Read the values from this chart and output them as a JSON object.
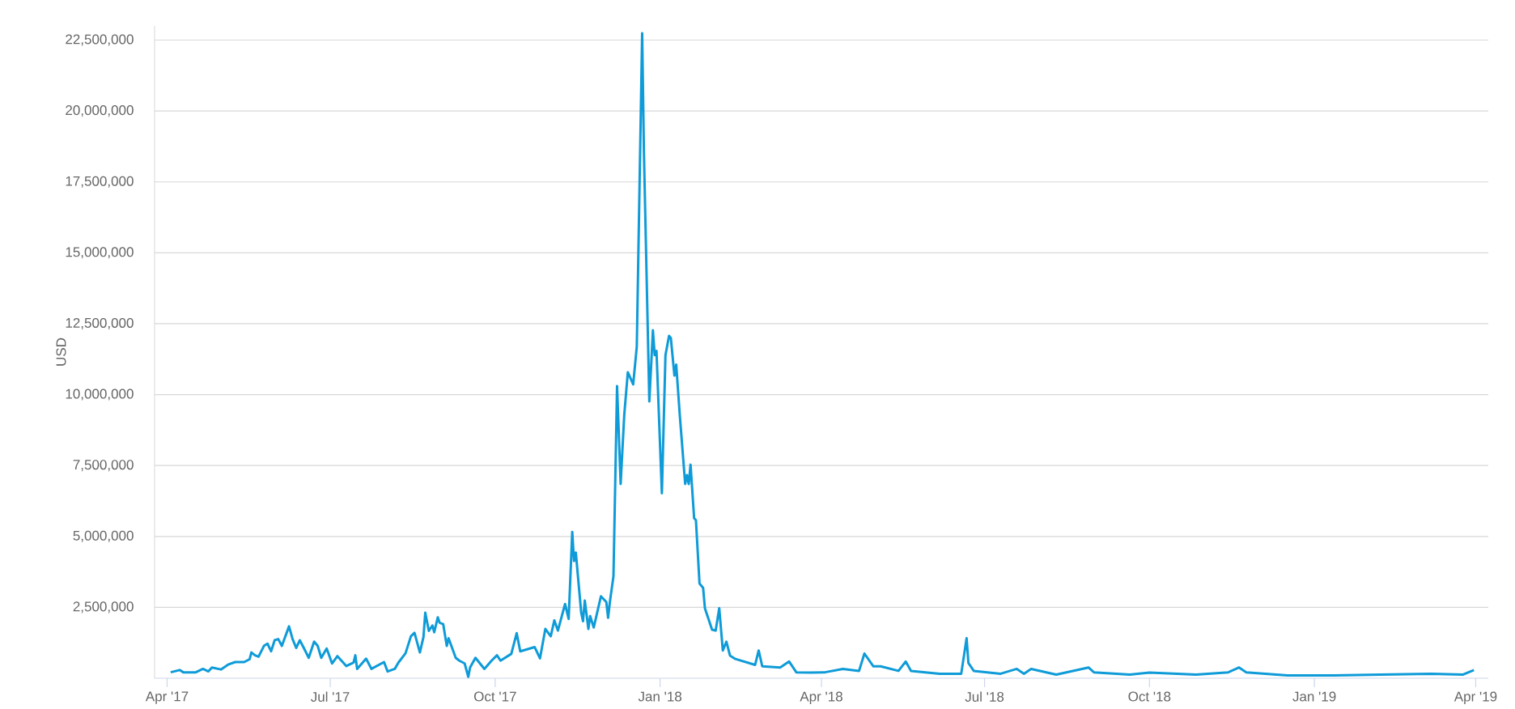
{
  "chart_data": {
    "type": "line",
    "ylabel": "USD",
    "color": "#0e9bd8",
    "grid": "y",
    "xlim": [
      "2017-03-25",
      "2019-04-08"
    ],
    "xticks": [
      {
        "value": "2017-04-01",
        "label": "Apr '17"
      },
      {
        "value": "2017-07-01",
        "label": "Jul '17"
      },
      {
        "value": "2017-10-01",
        "label": "Oct '17"
      },
      {
        "value": "2018-01-01",
        "label": "Jan '18"
      },
      {
        "value": "2018-04-01",
        "label": "Apr '18"
      },
      {
        "value": "2018-07-01",
        "label": "Jul '18"
      },
      {
        "value": "2018-10-01",
        "label": "Oct '18"
      },
      {
        "value": "2019-01-01",
        "label": "Jan '19"
      },
      {
        "value": "2019-04-01",
        "label": "Apr '19"
      }
    ],
    "ylim": [
      0,
      23000000
    ],
    "yticks": [
      {
        "value": 2500000,
        "label": "2,500,000"
      },
      {
        "value": 5000000,
        "label": "5,000,000"
      },
      {
        "value": 7500000,
        "label": "7,500,000"
      },
      {
        "value": 10000000,
        "label": "10,000,000"
      },
      {
        "value": 12500000,
        "label": "12,500,000"
      },
      {
        "value": 15000000,
        "label": "15,000,000"
      },
      {
        "value": 17500000,
        "label": "17,500,000"
      },
      {
        "value": 20000000,
        "label": "20,000,000"
      },
      {
        "value": 22500000,
        "label": "22,500,000"
      }
    ],
    "x": [
      "2017-04-03",
      "2017-04-08",
      "2017-04-10",
      "2017-04-17",
      "2017-04-21",
      "2017-04-24",
      "2017-04-26",
      "2017-05-01",
      "2017-05-05",
      "2017-05-09",
      "2017-05-14",
      "2017-05-17",
      "2017-05-18",
      "2017-05-20",
      "2017-05-22",
      "2017-05-25",
      "2017-05-27",
      "2017-05-29",
      "2017-05-31",
      "2017-06-02",
      "2017-06-04",
      "2017-06-08",
      "2017-06-10",
      "2017-06-12",
      "2017-06-14",
      "2017-06-16",
      "2017-06-19",
      "2017-06-22",
      "2017-06-24",
      "2017-06-26",
      "2017-06-29",
      "2017-06-30",
      "2017-07-02",
      "2017-07-05",
      "2017-07-10",
      "2017-07-14",
      "2017-07-15",
      "2017-07-16",
      "2017-07-21",
      "2017-07-24",
      "2017-07-31",
      "2017-08-02",
      "2017-08-06",
      "2017-08-08",
      "2017-08-12",
      "2017-08-15",
      "2017-08-17",
      "2017-08-20",
      "2017-08-22",
      "2017-08-23",
      "2017-08-25",
      "2017-08-27",
      "2017-08-28",
      "2017-08-30",
      "2017-08-31",
      "2017-09-02",
      "2017-09-04",
      "2017-09-05",
      "2017-09-09",
      "2017-09-11",
      "2017-09-14",
      "2017-09-16",
      "2017-09-17",
      "2017-09-20",
      "2017-09-25",
      "2017-09-29",
      "2017-10-02",
      "2017-10-04",
      "2017-10-10",
      "2017-10-13",
      "2017-10-15",
      "2017-10-23",
      "2017-10-26",
      "2017-10-29",
      "2017-11-01",
      "2017-11-03",
      "2017-11-05",
      "2017-11-09",
      "2017-11-11",
      "2017-11-13",
      "2017-11-14",
      "2017-11-15",
      "2017-11-18",
      "2017-11-19",
      "2017-11-20",
      "2017-11-22",
      "2017-11-23",
      "2017-11-25",
      "2017-11-29",
      "2017-12-02",
      "2017-12-03",
      "2017-12-04",
      "2017-12-06",
      "2017-12-08",
      "2017-12-10",
      "2017-12-12",
      "2017-12-14",
      "2017-12-17",
      "2017-12-19",
      "2017-12-22",
      "2017-12-23",
      "2017-12-26",
      "2017-12-28",
      "2017-12-29",
      "2017-12-30",
      "2018-01-02",
      "2018-01-04",
      "2018-01-06",
      "2018-01-07",
      "2018-01-09",
      "2018-01-10",
      "2018-01-12",
      "2018-01-15",
      "2018-01-16",
      "2018-01-17",
      "2018-01-18",
      "2018-01-20",
      "2018-01-21",
      "2018-01-23",
      "2018-01-25",
      "2018-01-26",
      "2018-01-30",
      "2018-02-01",
      "2018-02-03",
      "2018-02-05",
      "2018-02-07",
      "2018-02-09",
      "2018-02-12",
      "2018-02-23",
      "2018-02-25",
      "2018-02-27",
      "2018-03-09",
      "2018-03-14",
      "2018-03-18",
      "2018-03-26",
      "2018-04-03",
      "2018-04-13",
      "2018-04-22",
      "2018-04-25",
      "2018-04-30",
      "2018-05-04",
      "2018-05-14",
      "2018-05-18",
      "2018-05-21",
      "2018-06-06",
      "2018-06-18",
      "2018-06-21",
      "2018-06-22",
      "2018-06-25",
      "2018-07-10",
      "2018-07-19",
      "2018-07-23",
      "2018-07-27",
      "2018-08-10",
      "2018-08-28",
      "2018-08-31",
      "2018-09-20",
      "2018-10-01",
      "2018-10-27",
      "2018-11-14",
      "2018-11-20",
      "2018-11-24",
      "2018-12-17",
      "2019-01-12",
      "2019-02-07",
      "2019-03-07",
      "2019-03-25",
      "2019-03-31"
    ],
    "values": [
      210000,
      290000,
      210000,
      210000,
      330000,
      240000,
      380000,
      310000,
      480000,
      570000,
      570000,
      670000,
      910000,
      810000,
      760000,
      1140000,
      1220000,
      950000,
      1340000,
      1380000,
      1140000,
      1830000,
      1380000,
      1070000,
      1340000,
      1100000,
      720000,
      1290000,
      1140000,
      720000,
      1050000,
      880000,
      520000,
      780000,
      430000,
      550000,
      810000,
      330000,
      690000,
      330000,
      570000,
      240000,
      330000,
      550000,
      880000,
      1480000,
      1600000,
      910000,
      1450000,
      2310000,
      1670000,
      1860000,
      1620000,
      2150000,
      1960000,
      1910000,
      1140000,
      1410000,
      720000,
      620000,
      520000,
      50000,
      380000,
      720000,
      330000,
      620000,
      810000,
      620000,
      860000,
      1590000,
      950000,
      1100000,
      700000,
      1740000,
      1480000,
      2040000,
      1680000,
      2620000,
      2090000,
      5160000,
      4130000,
      4430000,
      2310000,
      2010000,
      2740000,
      1740000,
      2190000,
      1790000,
      2890000,
      2690000,
      2130000,
      2690000,
      3600000,
      10300000,
      6850000,
      9270000,
      10790000,
      10360000,
      11690000,
      22740000,
      18500000,
      9760000,
      12270000,
      11390000,
      11540000,
      6520000,
      11390000,
      12070000,
      12000000,
      10670000,
      11060000,
      9270000,
      6850000,
      7160000,
      6850000,
      7530000,
      5640000,
      5570000,
      3340000,
      3190000,
      2470000,
      1710000,
      1680000,
      2470000,
      980000,
      1290000,
      800000,
      680000,
      470000,
      980000,
      420000,
      380000,
      590000,
      210000,
      200000,
      210000,
      330000,
      260000,
      870000,
      420000,
      420000,
      260000,
      590000,
      260000,
      160000,
      160000,
      1410000,
      540000,
      260000,
      160000,
      330000,
      160000,
      330000,
      130000,
      380000,
      210000,
      130000,
      200000,
      130000,
      210000,
      380000,
      210000,
      100000,
      100000,
      130000,
      160000,
      130000,
      290000
    ]
  }
}
